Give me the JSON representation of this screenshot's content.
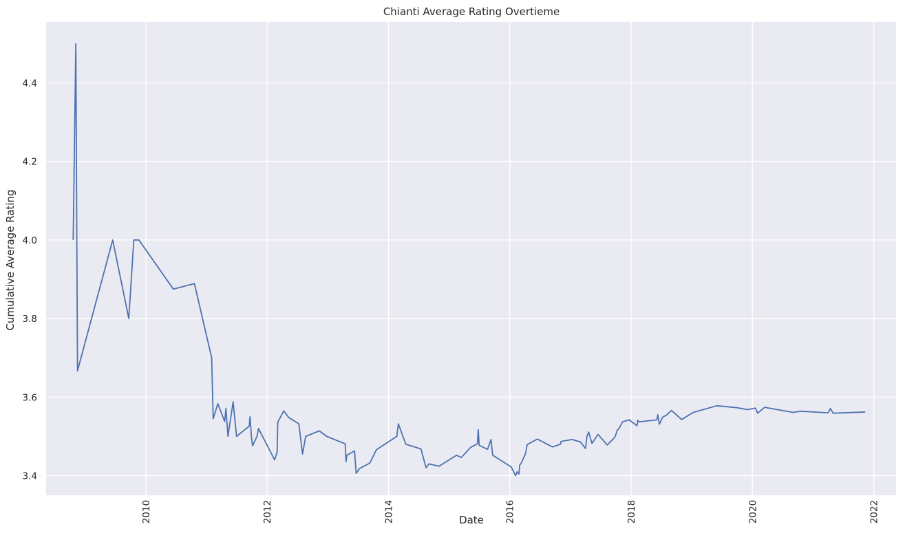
{
  "chart_data": {
    "type": "line",
    "title": "Chianti Average Rating Overtieme",
    "xlabel": "Date",
    "ylabel": "Cumulative Average Rating",
    "grid": true,
    "legend": "none",
    "xlim": [
      "2008-05-10",
      "2022-05-15"
    ],
    "ylim": [
      3.35,
      4.555
    ],
    "x_ticks": [
      "2010",
      "2012",
      "2014",
      "2016",
      "2018",
      "2020",
      "2022"
    ],
    "y_ticks": [
      "3.4",
      "3.6",
      "3.8",
      "4.0",
      "4.2",
      "4.4"
    ],
    "colors": {
      "line": "#4c72b0",
      "plot_bg": "#eaeaf2",
      "grid": "#ffffff",
      "text": "#262626"
    },
    "series": [
      {
        "x": [
          "2008-10-20",
          "2008-11-05",
          "2008-11-15",
          "2009-06-15",
          "2009-09-20",
          "2009-10-20",
          "2009-11-20",
          "2010-06-15",
          "2010-10-20",
          "2011-02-01",
          "2011-02-10",
          "2011-03-10",
          "2011-04-20",
          "2011-04-28",
          "2011-05-10",
          "2011-06-10",
          "2011-07-01",
          "2011-09-15",
          "2011-09-20",
          "2011-09-28",
          "2011-10-05",
          "2011-11-01",
          "2011-11-10",
          "2012-02-15",
          "2012-03-01",
          "2012-03-05",
          "2012-04-10",
          "2012-05-10",
          "2012-07-10",
          "2012-08-01",
          "2012-08-20",
          "2012-11-10",
          "2012-12-25",
          "2013-04-15",
          "2013-04-20",
          "2013-04-25",
          "2013-06-10",
          "2013-06-20",
          "2013-07-10",
          "2013-09-10",
          "2013-10-20",
          "2014-02-20",
          "2014-03-01",
          "2014-04-15",
          "2014-07-15",
          "2014-08-15",
          "2014-09-01",
          "2014-11-01",
          "2015-02-15",
          "2015-03-15",
          "2015-05-10",
          "2015-06-20",
          "2015-06-25",
          "2015-07-01",
          "2015-08-20",
          "2015-09-10",
          "2015-09-20",
          "2016-01-10",
          "2016-02-05",
          "2016-02-15",
          "2016-02-25",
          "2016-03-01",
          "2016-03-10",
          "2016-04-05",
          "2016-04-15",
          "2016-06-15",
          "2016-09-15",
          "2016-11-01",
          "2016-11-05",
          "2017-01-10",
          "2017-03-01",
          "2017-04-01",
          "2017-04-10",
          "2017-04-20",
          "2017-05-10",
          "2017-06-15",
          "2017-08-10",
          "2017-09-25",
          "2017-10-10",
          "2017-10-20",
          "2017-11-10",
          "2017-12-20",
          "2018-02-05",
          "2018-02-10",
          "2018-02-15",
          "2018-06-05",
          "2018-06-10",
          "2018-06-20",
          "2018-07-10",
          "2018-08-01",
          "2018-09-01",
          "2018-11-01",
          "2019-01-10",
          "2019-06-01",
          "2019-10-01",
          "2019-12-01",
          "2020-01-20",
          "2020-02-01",
          "2020-03-15",
          "2020-09-01",
          "2020-10-20",
          "2021-04-01",
          "2021-04-15",
          "2021-05-01",
          "2021-11-10"
        ],
        "y": [
          4.0,
          4.5,
          3.667,
          4.0,
          3.8,
          4.0,
          4.0,
          3.875,
          3.889,
          3.7,
          3.545,
          3.583,
          3.538,
          3.571,
          3.5,
          3.588,
          3.5,
          3.526,
          3.55,
          3.5,
          3.476,
          3.5,
          3.52,
          3.44,
          3.46,
          3.536,
          3.565,
          3.548,
          3.532,
          3.455,
          3.5,
          3.514,
          3.5,
          3.481,
          3.436,
          3.452,
          3.463,
          3.406,
          3.418,
          3.432,
          3.466,
          3.5,
          3.532,
          3.48,
          3.468,
          3.42,
          3.43,
          3.424,
          3.452,
          3.446,
          3.472,
          3.481,
          3.517,
          3.477,
          3.467,
          3.492,
          3.452,
          3.422,
          3.4,
          3.41,
          3.404,
          3.427,
          3.432,
          3.456,
          3.479,
          3.493,
          3.473,
          3.48,
          3.487,
          3.492,
          3.486,
          3.469,
          3.5,
          3.511,
          3.482,
          3.505,
          3.478,
          3.498,
          3.516,
          3.52,
          3.537,
          3.542,
          3.527,
          3.541,
          3.537,
          3.542,
          3.555,
          3.531,
          3.549,
          3.554,
          3.566,
          3.543,
          3.561,
          3.578,
          3.573,
          3.568,
          3.572,
          3.559,
          3.574,
          3.561,
          3.564,
          3.56,
          3.571,
          3.559,
          3.562
        ]
      }
    ]
  }
}
